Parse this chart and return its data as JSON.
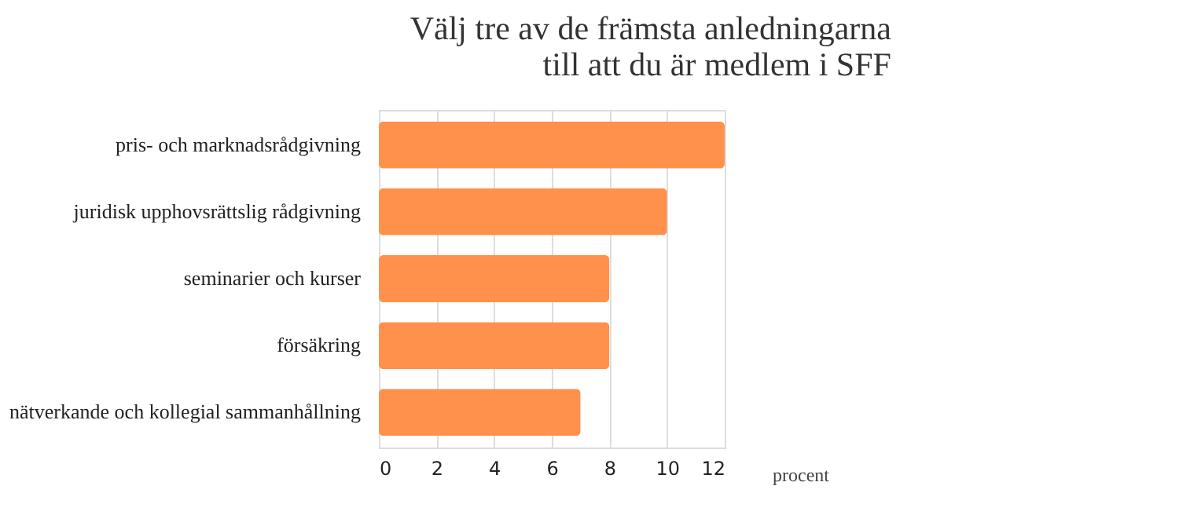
{
  "chart_data": {
    "type": "bar",
    "orientation": "horizontal",
    "title": "Välj tre av de främsta anledningarna\ntill att du är medlem i SFF",
    "categories": [
      "pris- och marknadsrådgivning",
      "juridisk upphovsrättslig rådgivning",
      "seminarier och kurser",
      "försäkring",
      "nätverkande och kollegial sammanhållning"
    ],
    "values": [
      12,
      10,
      8,
      8,
      7
    ],
    "color": "#ff914d",
    "xlabel": "procent",
    "xlim": [
      0,
      12
    ],
    "xticks": [
      0,
      2,
      4,
      6,
      8,
      10,
      12
    ],
    "grid": "x"
  }
}
